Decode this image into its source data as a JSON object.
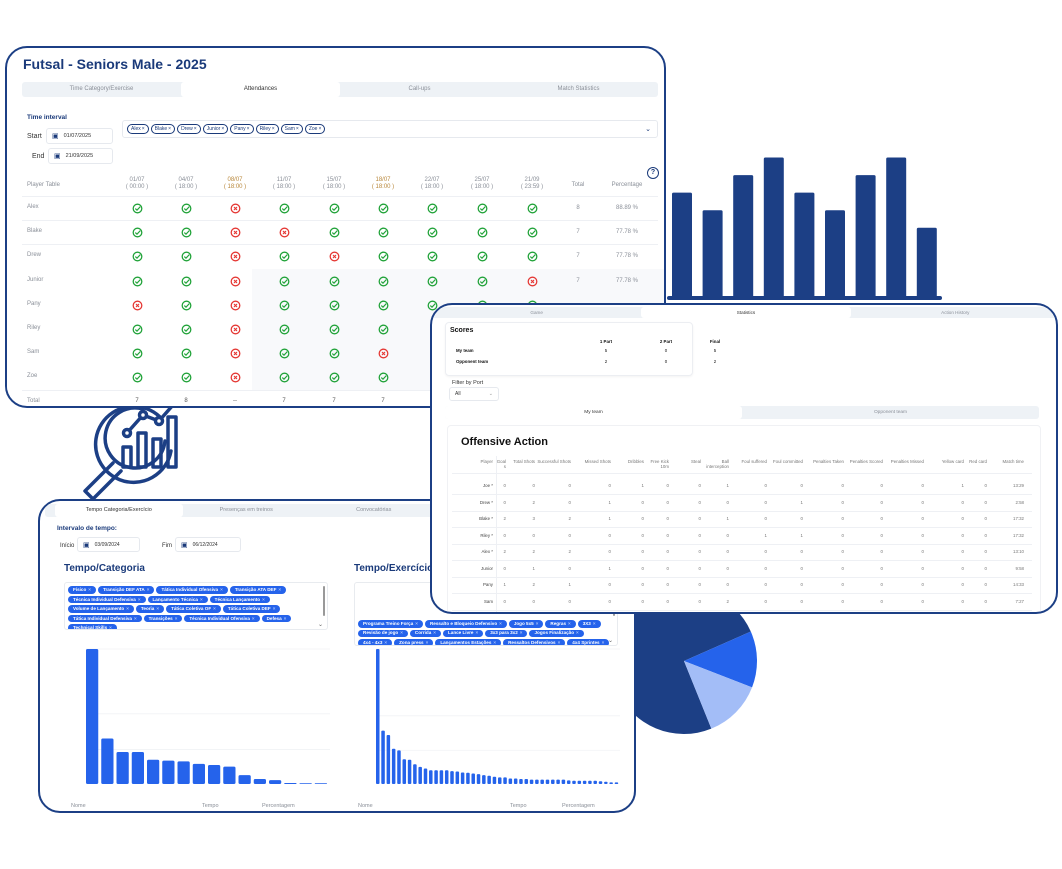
{
  "colors": {
    "navy": "#1c3f85",
    "accent": "#2563eb",
    "light_accent": "#a3bdf7",
    "present": "#22a33a",
    "absent": "#e53935"
  },
  "attendance": {
    "title": "Futsal - Seniors Male - 2025",
    "tabs": [
      "Time Category/Exercise",
      "Attendances",
      "Call-ups",
      "Match Statistics"
    ],
    "active_tab": 1,
    "time_interval_label": "Time interval",
    "start_label": "Start",
    "start_value": "01/07/2025",
    "end_label": "End",
    "end_value": "21/09/2025",
    "selected_players": [
      "Alex",
      "Blake",
      "Drew",
      "Junior",
      "Pany",
      "Riley",
      "Sam",
      "Zoe"
    ],
    "help_icon": "question-circle-icon",
    "columns": {
      "player": "Player Table",
      "dates": [
        [
          "01/07",
          "( 00:00 )"
        ],
        [
          "04/07",
          "( 18:00 )"
        ],
        [
          "08/07",
          "( 18:00 )"
        ],
        [
          "11/07",
          "( 18:00 )"
        ],
        [
          "15/07",
          "( 18:00 )"
        ],
        [
          "18/07",
          "( 18:00 )"
        ],
        [
          "22/07",
          "( 18:00 )"
        ],
        [
          "25/07",
          "( 18:00 )"
        ],
        [
          "21/09",
          "( 23:59 )"
        ]
      ],
      "total": "Total",
      "percentage": "Percentage"
    },
    "rows": [
      {
        "name": "Alex",
        "marks": [
          "Y",
          "Y",
          "N",
          "Y",
          "Y",
          "Y",
          "Y",
          "Y",
          "Y"
        ],
        "total": "8",
        "percentage": "88.89 %"
      },
      {
        "name": "Blake",
        "marks": [
          "Y",
          "Y",
          "N",
          "N",
          "Y",
          "Y",
          "Y",
          "Y",
          "Y"
        ],
        "total": "7",
        "percentage": "77.78 %"
      },
      {
        "name": "Drew",
        "marks": [
          "Y",
          "Y",
          "N",
          "Y",
          "N",
          "Y",
          "Y",
          "Y",
          "Y"
        ],
        "total": "7",
        "percentage": "77.78 %"
      },
      {
        "name": "Junior",
        "marks": [
          "Y",
          "Y",
          "N",
          "Y",
          "Y",
          "Y",
          "Y",
          "Y",
          "N"
        ],
        "total": "7",
        "percentage": "77.78 %"
      },
      {
        "name": "Pany",
        "marks": [
          "N",
          "Y",
          "N",
          "Y",
          "Y",
          "Y",
          "Y",
          "Y",
          "Y"
        ],
        "total": "",
        "percentage": ""
      },
      {
        "name": "Riley",
        "marks": [
          "Y",
          "Y",
          "N",
          "Y",
          "Y",
          "Y"
        ],
        "total": "",
        "percentage": ""
      },
      {
        "name": "Sam",
        "marks": [
          "Y",
          "Y",
          "N",
          "Y",
          "Y",
          "N"
        ],
        "total": "",
        "percentage": ""
      },
      {
        "name": "Zoe",
        "marks": [
          "Y",
          "Y",
          "N",
          "Y",
          "Y",
          "Y"
        ],
        "total": "",
        "percentage": ""
      }
    ],
    "total_row": {
      "label": "Total",
      "values": [
        "7",
        "8",
        "--",
        "7",
        "7",
        "7"
      ]
    }
  },
  "statistics": {
    "tabs": [
      "Game",
      "Statistics",
      "Action History"
    ],
    "active_tab": 1,
    "scores": {
      "title": "Scores",
      "headers": [
        "1 Part",
        "2 Part",
        "Final"
      ],
      "rows": [
        {
          "team": "My team",
          "values": [
            "5",
            "0",
            "5"
          ]
        },
        {
          "team": "Opponent team",
          "values": [
            "2",
            "0",
            "2"
          ]
        }
      ]
    },
    "filter_label": "Filter by Port",
    "filter_value": "All",
    "team_tabs": [
      "My team",
      "Opponent team"
    ],
    "active_team_tab": 0,
    "offensive_title": "Offensive Action",
    "columns": [
      "Player",
      "Goals",
      "Total Shots",
      "Successful Shots",
      "Missed Shots",
      "Dribbles",
      "Free Kick 10m",
      "Steal",
      "Ball interception",
      "Foul suffered",
      "Foul committed",
      "Penalties Taken",
      "Penalties Scored",
      "Penalties Missed",
      "Yellow card",
      "Red card",
      "Match time"
    ],
    "rows": [
      [
        "Joe *",
        "0",
        "0",
        "0",
        "0",
        "1",
        "0",
        "0",
        "1",
        "0",
        "0",
        "0",
        "0",
        "0",
        "1",
        "0",
        "13:29"
      ],
      [
        "Drew *",
        "0",
        "2",
        "0",
        "1",
        "0",
        "0",
        "0",
        "0",
        "0",
        "1",
        "0",
        "0",
        "0",
        "0",
        "0",
        "2:58"
      ],
      [
        "Blake *",
        "2",
        "3",
        "2",
        "1",
        "0",
        "0",
        "0",
        "1",
        "0",
        "0",
        "0",
        "0",
        "0",
        "0",
        "0",
        "17:32"
      ],
      [
        "Riley *",
        "0",
        "0",
        "0",
        "0",
        "0",
        "0",
        "0",
        "0",
        "1",
        "1",
        "0",
        "0",
        "0",
        "0",
        "0",
        "17:32"
      ],
      [
        "Alex *",
        "2",
        "2",
        "2",
        "0",
        "0",
        "0",
        "0",
        "0",
        "0",
        "0",
        "0",
        "0",
        "0",
        "0",
        "0",
        "13:10"
      ],
      [
        "Junior",
        "0",
        "1",
        "0",
        "1",
        "0",
        "0",
        "0",
        "0",
        "0",
        "0",
        "0",
        "0",
        "0",
        "0",
        "0",
        "9:58"
      ],
      [
        "Pany",
        "1",
        "2",
        "1",
        "0",
        "0",
        "0",
        "0",
        "0",
        "0",
        "0",
        "0",
        "0",
        "0",
        "0",
        "0",
        "14:33"
      ],
      [
        "Sam",
        "0",
        "0",
        "0",
        "0",
        "0",
        "0",
        "0",
        "2",
        "0",
        "0",
        "0",
        "0",
        "0",
        "0",
        "0",
        "7:27"
      ]
    ]
  },
  "training": {
    "tabs": [
      "Tempo Categoria/Exercício",
      "Presenças em treinos",
      "Convocatórias"
    ],
    "active_tab": 0,
    "interval_label": "Intervalo de tempo:",
    "start_label": "Início",
    "start_value": "03/09/2024",
    "end_label": "Fim",
    "end_value": "06/12/2024",
    "category_title": "Tempo/Categoria",
    "category_chips": [
      "Físico",
      "Transição DEF ATA",
      "Tática Individual Ofensiva",
      "Transição ATA DEF",
      "Técnica Individual Defensiva",
      "Lançamento Técnica",
      "Técnica Lançamento",
      "Volume de Lançamento",
      "Teoria",
      "Tática Coletiva OF",
      "Tática Coletiva DEF",
      "Tática Individual Defensiva",
      "Transições",
      "Técnica Individual Ofensiva",
      "Defesa",
      "Technical Skills"
    ],
    "exercise_title": "Tempo/Exercício",
    "exercise_chips": [
      "Programa Treino Força",
      "",
      "Ressalto e Bloqueio Defensivo",
      "Jogo 5x5",
      "Regras",
      "3X3",
      "Revisão de jogo",
      "Corrida",
      "Lance Livre",
      "3x3 para 3x2",
      "Jogos Finalização",
      "4x4 - 4x3",
      "Zona press",
      "Lançamentos Estações",
      "Ressaltos Defensivos",
      "4x4 Sprintes"
    ],
    "axis_labels": [
      "Nome",
      "Tempo",
      "Percentagem"
    ]
  },
  "chart_data": [
    {
      "type": "bar",
      "title": "Tempo/Categoria",
      "values": [
        100,
        33.7,
        23.7,
        23.7,
        18.0,
        17.3,
        16.8,
        14.9,
        14.1,
        12.9,
        6.6,
        3.7,
        2.9,
        0.7,
        0.3,
        0.3
      ],
      "grid": true,
      "gridlines": [
        100,
        52,
        25.6
      ],
      "ylim": [
        0,
        100
      ]
    },
    {
      "type": "bar",
      "title": "Tempo/Exercício",
      "values": [
        100,
        39.5,
        36.3,
        26.1,
        24.9,
        18.3,
        18.0,
        14.6,
        12.7,
        11.5,
        10.2,
        10.2,
        10.2,
        10.2,
        9.5,
        9.3,
        8.5,
        8.3,
        7.8,
        7.3,
        6.6,
        6.1,
        5.4,
        4.9,
        4.9,
        4.1,
        4.1,
        3.7,
        3.7,
        3.2,
        3.2,
        3.2,
        3.2,
        3.2,
        3.2,
        3.2,
        2.7,
        2.4,
        2.4,
        2.4,
        2.4,
        2.4,
        2.0,
        1.7,
        1.2,
        1.2
      ],
      "grid": true,
      "gridlines": [
        100,
        50.5,
        25
      ],
      "ylim": [
        0,
        100
      ]
    },
    {
      "type": "bar",
      "values": [
        6,
        5,
        7,
        8,
        6,
        5,
        7,
        8,
        4
      ],
      "ylim": [
        0,
        9
      ]
    },
    {
      "type": "pie",
      "values": [
        74.5,
        12.5,
        13
      ]
    }
  ]
}
